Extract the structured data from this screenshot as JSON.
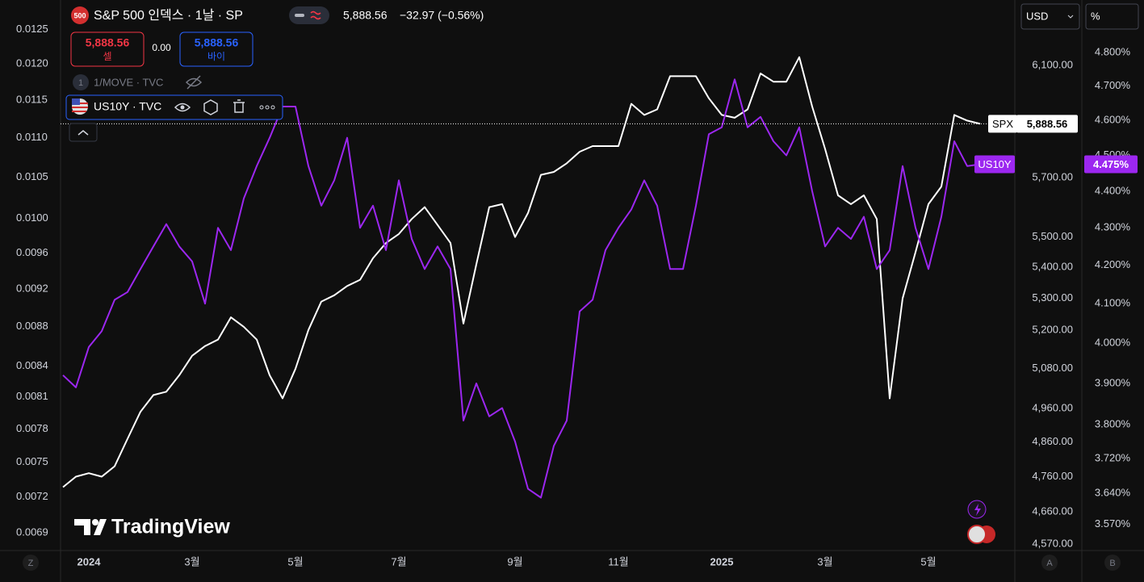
{
  "chart_data": {
    "type": "line",
    "title": "S&P 500 인덱스 · 1날 · SP",
    "badge": "500",
    "last_price": "5,888.56",
    "change": "−32.97 (−0.56%)",
    "sell": {
      "price": "5,888.56",
      "label": "셀"
    },
    "spread": "0.00",
    "buy": {
      "price": "5,888.56",
      "label": "바이"
    },
    "indicators": [
      {
        "index": "1",
        "name": "1/MOVE · TVC"
      },
      {
        "name": "US10Y · TVC"
      }
    ],
    "currency": "USD",
    "unit": "%",
    "watermark": "TradingView",
    "corner_labels": [
      "Z",
      "A",
      "B"
    ],
    "log_scale": true,
    "grid": false,
    "categories": [
      null,
      null,
      "2024",
      null,
      null,
      null,
      null,
      null,
      null,
      null,
      "3월",
      null,
      null,
      null,
      null,
      null,
      null,
      null,
      "5월",
      null,
      null,
      null,
      null,
      null,
      null,
      null,
      "7월",
      null,
      null,
      null,
      null,
      null,
      null,
      null,
      null,
      "9월",
      null,
      null,
      null,
      null,
      null,
      null,
      null,
      "11월",
      null,
      null,
      null,
      null,
      null,
      null,
      null,
      "2025",
      null,
      null,
      null,
      null,
      null,
      null,
      null,
      "3월",
      null,
      null,
      null,
      null,
      null,
      null,
      null,
      "5월",
      null,
      null,
      null,
      null
    ],
    "ylim": [
      4557,
      6345
    ],
    "yticks": [
      {
        "value": 6100,
        "label": "6,100.00"
      },
      {
        "value": 5700,
        "label": "5,700.00"
      },
      {
        "value": 5500,
        "label": "5,500.00"
      },
      {
        "value": 5400,
        "label": "5,400.00"
      },
      {
        "value": 5300,
        "label": "5,300.00"
      },
      {
        "value": 5200,
        "label": "5,200.00"
      },
      {
        "value": 5080,
        "label": "5,080.00"
      },
      {
        "value": 4960,
        "label": "4,960.00"
      },
      {
        "value": 4860,
        "label": "4,860.00"
      },
      {
        "value": 4760,
        "label": "4,760.00"
      },
      {
        "value": 4660,
        "label": "4,660.00"
      },
      {
        "value": 4570,
        "label": "4,570.00"
      }
    ],
    "y2lim": [
      3.515,
      4.961
    ],
    "y2ticks": [
      {
        "value": 4.8,
        "label": "4.800%"
      },
      {
        "value": 4.7,
        "label": "4.700%"
      },
      {
        "value": 4.6,
        "label": "4.600%"
      },
      {
        "value": 4.5,
        "label": "4.500%"
      },
      {
        "value": 4.4,
        "label": "4.400%"
      },
      {
        "value": 4.3,
        "label": "4.300%"
      },
      {
        "value": 4.2,
        "label": "4.200%"
      },
      {
        "value": 4.1,
        "label": "4.100%"
      },
      {
        "value": 4.0,
        "label": "4.000%"
      },
      {
        "value": 3.9,
        "label": "3.900%"
      },
      {
        "value": 3.8,
        "label": "3.800%"
      },
      {
        "value": 3.72,
        "label": "3.720%"
      },
      {
        "value": 3.64,
        "label": "3.640%"
      },
      {
        "value": 3.57,
        "label": "3.570%"
      }
    ],
    "y3lim": [
      0.00677,
      0.01294
    ],
    "y3ticks": [
      0.0125,
      {
        "value": 0.012,
        "label": "0.0120"
      },
      0.0115,
      {
        "value": 0.011,
        "label": "0.0110"
      },
      0.0105,
      {
        "value": 0.01,
        "label": "0.0100"
      },
      0.0096,
      0.0092,
      0.0088,
      0.0084,
      0.0081,
      0.0078,
      0.0075,
      0.0072,
      0.0069
    ],
    "series": [
      {
        "name": "SPX",
        "color": "#ffffff",
        "values": [
          4730,
          4760,
          4770,
          4760,
          4790,
          4870,
          4950,
          5000,
          5010,
          5060,
          5120,
          5150,
          5170,
          5240,
          5210,
          5170,
          5060,
          4990,
          5080,
          5200,
          5290,
          5310,
          5340,
          5360,
          5430,
          5480,
          5510,
          5560,
          5600,
          5540,
          5480,
          5220,
          5410,
          5600,
          5610,
          5500,
          5580,
          5710,
          5720,
          5750,
          5790,
          5810,
          5810,
          5810,
          5960,
          5920,
          5940,
          6060,
          6060,
          6060,
          5980,
          5920,
          5910,
          5940,
          6070,
          6040,
          6040,
          6130,
          5950,
          5800,
          5640,
          5610,
          5640,
          5560,
          4990,
          5300,
          5450,
          5610,
          5670,
          5920,
          5900,
          5888.56
        ],
        "value_labels": [
          null,
          null,
          null,
          null,
          null,
          null,
          null,
          null,
          null,
          null,
          null,
          null,
          null,
          null,
          null,
          null,
          null,
          null,
          null,
          null,
          null,
          null,
          null,
          null,
          null,
          null,
          null,
          null,
          null,
          null,
          null,
          null,
          null,
          null,
          null,
          null,
          null,
          null,
          null,
          null,
          null,
          null,
          null,
          null,
          null,
          null,
          null,
          null,
          null,
          null,
          null,
          null,
          null,
          null,
          null,
          null,
          null,
          null,
          null,
          null,
          null,
          null,
          null,
          null,
          null,
          null,
          null,
          null,
          null,
          null,
          null,
          "5,888.56"
        ]
      },
      {
        "name": "US10Y",
        "color": "#9c27f0",
        "axis": "y2",
        "values": [
          3.92,
          3.89,
          3.99,
          4.03,
          4.11,
          4.13,
          4.19,
          4.25,
          4.31,
          4.25,
          4.21,
          4.1,
          4.3,
          4.24,
          4.38,
          4.47,
          4.55,
          4.64,
          4.64,
          4.47,
          4.36,
          4.43,
          4.55,
          4.3,
          4.36,
          4.24,
          4.43,
          4.27,
          4.19,
          4.25,
          4.19,
          3.81,
          3.9,
          3.82,
          3.84,
          3.76,
          3.65,
          3.63,
          3.75,
          3.81,
          4.08,
          4.11,
          4.24,
          4.3,
          4.35,
          4.43,
          4.36,
          4.19,
          4.19,
          4.36,
          4.56,
          4.58,
          4.72,
          4.58,
          4.61,
          4.54,
          4.5,
          4.58,
          4.4,
          4.25,
          4.3,
          4.27,
          4.33,
          4.19,
          4.24,
          4.47,
          4.3,
          4.19,
          4.33,
          4.54,
          4.47,
          4.475
        ],
        "value_labels": [
          null,
          null,
          null,
          null,
          null,
          null,
          null,
          null,
          null,
          null,
          null,
          null,
          null,
          null,
          null,
          null,
          null,
          null,
          null,
          null,
          null,
          null,
          null,
          null,
          null,
          null,
          null,
          null,
          null,
          null,
          null,
          null,
          null,
          null,
          null,
          null,
          null,
          null,
          null,
          null,
          null,
          null,
          null,
          null,
          null,
          null,
          null,
          null,
          null,
          null,
          null,
          null,
          null,
          null,
          null,
          null,
          null,
          null,
          null,
          null,
          null,
          null,
          null,
          null,
          null,
          null,
          null,
          null,
          null,
          null,
          null,
          "4.475%"
        ]
      }
    ]
  }
}
